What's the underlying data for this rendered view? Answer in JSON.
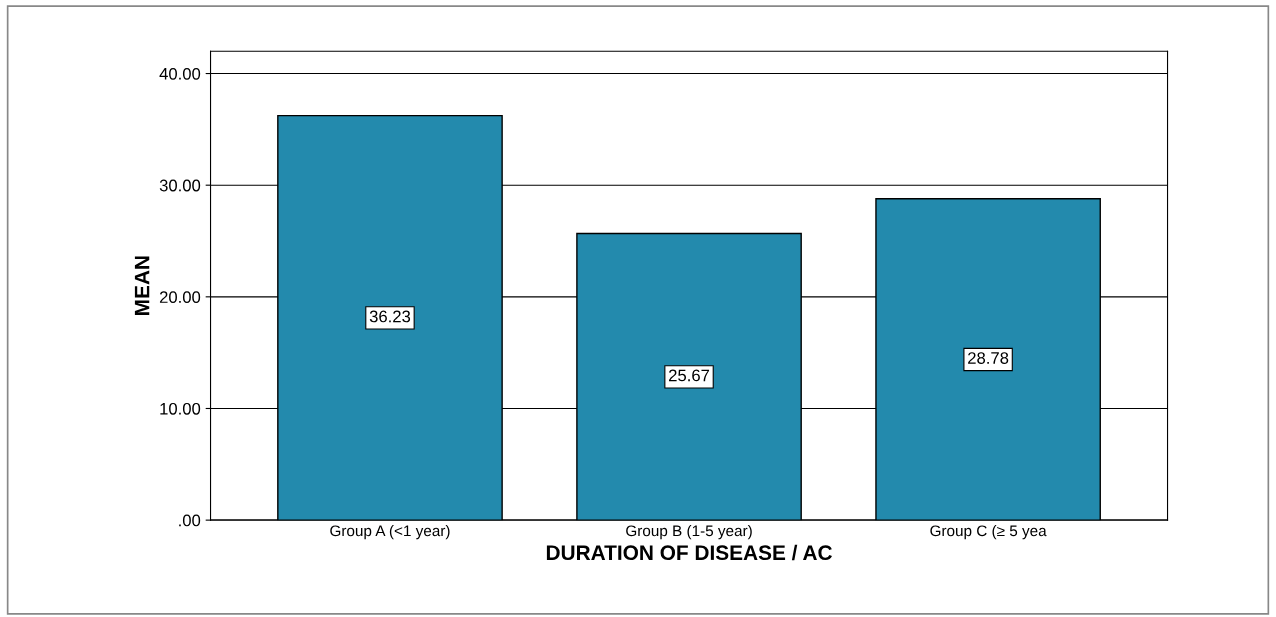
{
  "chart_data": {
    "type": "bar",
    "xlabel": "DURATION OF DISEASE / AC",
    "ylabel": "MEAN",
    "categories": [
      "Group A (<1 year)",
      "Group B (1-5 year)",
      "Group C (≥ 5 yea"
    ],
    "values": [
      36.23,
      25.67,
      28.78
    ],
    "color": "#238aad",
    "ylim": [
      0,
      42
    ],
    "yticks": [
      {
        "value": 0,
        "label": ".00"
      },
      {
        "value": 10,
        "label": "10.00"
      },
      {
        "value": 20,
        "label": "20.00"
      },
      {
        "value": 30,
        "label": "30.00"
      },
      {
        "value": 40,
        "label": "40.00"
      }
    ],
    "grid": "y",
    "data_labels": true
  }
}
